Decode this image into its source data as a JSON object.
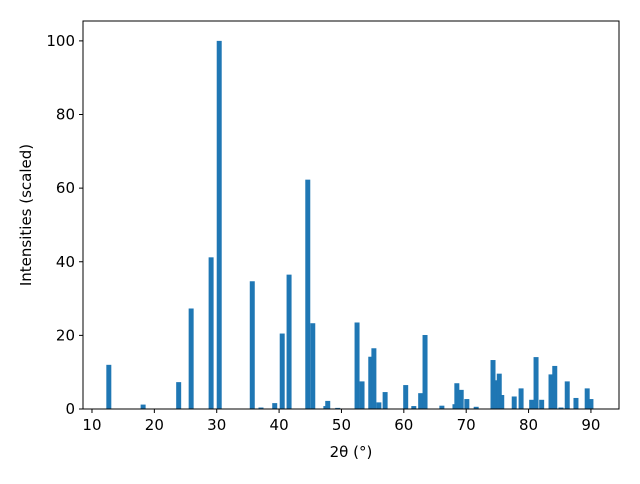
{
  "chart_data": {
    "type": "bar",
    "x_label": "2θ (°)",
    "y_label": "Intensities (scaled)",
    "color": "#1f77b4",
    "x": [
      12.7,
      18.2,
      23.9,
      25.9,
      29.1,
      30.4,
      35.7,
      37.1,
      39.3,
      40.5,
      41.6,
      44.6,
      45.4,
      47.5,
      47.8,
      49.4,
      52.5,
      53.3,
      54.7,
      55.2,
      56.0,
      57.0,
      60.3,
      61.6,
      62.7,
      63.4,
      66.1,
      68.2,
      68.5,
      69.2,
      70.1,
      71.6,
      74.3,
      74.8,
      75.3,
      75.7,
      77.7,
      78.8,
      80.5,
      81.2,
      82.1,
      83.6,
      84.2,
      85.2,
      86.2,
      87.6,
      89.4,
      90.0
    ],
    "values": [
      12,
      1.2,
      7.3,
      27.3,
      41.2,
      100,
      34.7,
      0.4,
      1.6,
      20.5,
      36.5,
      62.3,
      23.3,
      0.8,
      2.2,
      0.3,
      23.5,
      7.5,
      14.2,
      16.5,
      1.8,
      4.6,
      6.5,
      0.8,
      4.3,
      20.1,
      0.9,
      1.3,
      7.0,
      5.2,
      2.7,
      0.6,
      13.3,
      7.8,
      9.6,
      3.8,
      3.4,
      5.6,
      2.5,
      14.1,
      2.5,
      9.4,
      11.7,
      0.4,
      7.5,
      3.0,
      5.6,
      2.7
    ],
    "xlim": [
      8.56,
      94.5
    ],
    "ylim": [
      0,
      105.4
    ],
    "xticks": [
      10,
      20,
      30,
      40,
      50,
      60,
      70,
      80,
      90
    ],
    "yticks": [
      0,
      20,
      40,
      60,
      80,
      100
    ]
  }
}
